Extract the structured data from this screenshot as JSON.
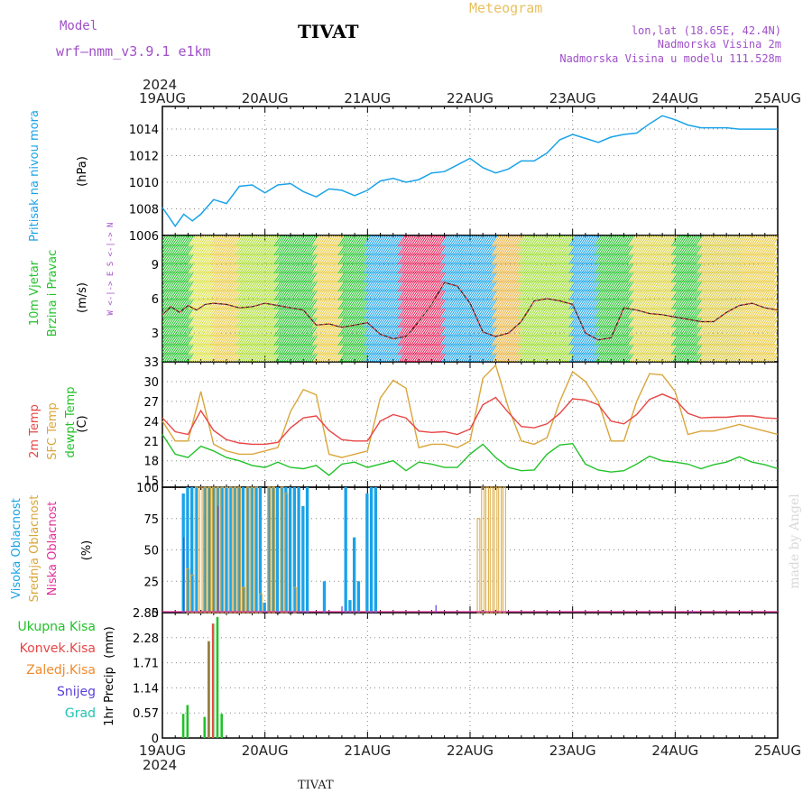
{
  "header": {
    "model_label": "Model",
    "model_name": "wrf—nmm_v3.9.1  e1km",
    "station": "TIVAT",
    "meteogram": "Meteogram",
    "lonlat": "lon,lat (18.65E, 42.4N)",
    "height": "Nadmorska Visina 2m",
    "model_height": "Nadmorska Visina u modelu 111.528m",
    "footer_station": "TIVAT",
    "watermark": "made by Angel",
    "year_top": "2024",
    "year_bottom": "2024",
    "wind_compass": "W <-|-> E   S <-|-> N"
  },
  "colors": {
    "pressure": "#1aa3e8",
    "temp2m": "#e84545",
    "sfctemp": "#d9a63a",
    "dewpoint": "#22c22a",
    "cloud_high": "#1aa3e8",
    "cloud_mid": "#d9a63a",
    "cloud_low": "#e0309a",
    "rain_total": "#22c22a",
    "rain_conv": "#e84545",
    "snow": "#5a3fd8",
    "hail": "#22c2b0",
    "freezing": "#f08a2a",
    "model_text": "#a050c8"
  },
  "x_axis": {
    "labels": [
      "19AUG",
      "20AUG",
      "21AUG",
      "22AUG",
      "23AUG",
      "24AUG",
      "25AUG"
    ],
    "range_hours": [
      0,
      144
    ]
  },
  "chart_data": [
    {
      "type": "line",
      "panel": "pressure",
      "ylabel_title": "Pritisak na nivou mora",
      "ylabel_unit": "(hPa)",
      "ylim": [
        1006,
        1015.7
      ],
      "yticks": [
        1006,
        1008,
        1010,
        1012,
        1014
      ],
      "series": [
        {
          "name": "Pritisak na nivou mora",
          "x": [
            0,
            3,
            5,
            7,
            9,
            12,
            15,
            18,
            21,
            24,
            27,
            30,
            33,
            36,
            39,
            42,
            45,
            48,
            51,
            54,
            57,
            60,
            63,
            66,
            69,
            72,
            75,
            78,
            81,
            84,
            87,
            90,
            93,
            96,
            99,
            102,
            105,
            108,
            111,
            114,
            117,
            120,
            123,
            126,
            129,
            132,
            135,
            138,
            141,
            144
          ],
          "y": [
            1008.1,
            1006.7,
            1007.6,
            1007.1,
            1007.6,
            1008.7,
            1008.4,
            1009.7,
            1009.8,
            1009.2,
            1009.8,
            1009.9,
            1009.3,
            1008.9,
            1009.5,
            1009.4,
            1009.0,
            1009.4,
            1010.1,
            1010.3,
            1010.0,
            1010.2,
            1010.7,
            1010.8,
            1011.3,
            1011.8,
            1011.1,
            1010.7,
            1011.0,
            1011.6,
            1011.6,
            1012.2,
            1013.2,
            1013.6,
            1013.3,
            1013.0,
            1013.4,
            1013.6,
            1013.7,
            1014.4,
            1015.0,
            1014.7,
            1014.3,
            1014.1,
            1014.1,
            1014.1,
            1014.0,
            1014.0,
            1014.0,
            1014.0
          ]
        }
      ]
    },
    {
      "type": "line",
      "panel": "wind",
      "ylabel_title": "10m Vjetar Brzina i Pravac",
      "ylabel_unit": "(m/s)",
      "ylim": [
        0.5,
        11.5
      ],
      "yticks": [
        3,
        6,
        9
      ],
      "series": [
        {
          "name": "10m Vjetar Brzina i Pravac",
          "x": [
            0,
            2,
            4,
            6,
            8,
            10,
            12,
            15,
            18,
            21,
            24,
            27,
            30,
            33,
            36,
            39,
            42,
            45,
            48,
            51,
            54,
            57,
            60,
            63,
            66,
            69,
            72,
            75,
            78,
            81,
            84,
            87,
            90,
            93,
            96,
            99,
            102,
            105,
            108,
            111,
            114,
            117,
            120,
            123,
            126,
            129,
            132,
            135,
            138,
            141,
            144
          ],
          "y": [
            4.6,
            5.3,
            4.8,
            5.4,
            5.0,
            5.5,
            5.6,
            5.5,
            5.2,
            5.3,
            5.6,
            5.4,
            5.2,
            5.0,
            3.7,
            3.8,
            3.5,
            3.7,
            3.9,
            2.9,
            2.5,
            2.7,
            4.0,
            5.5,
            7.4,
            7.1,
            5.6,
            3.1,
            2.7,
            3.0,
            4.0,
            5.8,
            6.0,
            5.8,
            5.5,
            3.0,
            2.4,
            2.6,
            5.2,
            5.0,
            4.7,
            4.6,
            4.4,
            4.2,
            4.0,
            4.0,
            4.8,
            5.4,
            5.6,
            5.2,
            5.0
          ]
        }
      ]
    },
    {
      "type": "line",
      "panel": "temperature",
      "ylabel_title": "2m Temp  SFC Temp  dewpt Temp",
      "ylabel_unit": "(C)",
      "ylim": [
        14,
        33
      ],
      "yticks": [
        15,
        18,
        21,
        24,
        27,
        30,
        33
      ],
      "series": [
        {
          "name": "2m Temp",
          "x": [
            0,
            3,
            6,
            9,
            12,
            15,
            18,
            21,
            24,
            27,
            30,
            33,
            36,
            39,
            42,
            45,
            48,
            51,
            54,
            57,
            60,
            63,
            66,
            69,
            72,
            75,
            78,
            81,
            84,
            87,
            90,
            93,
            96,
            99,
            102,
            105,
            108,
            111,
            114,
            117,
            120,
            123,
            126,
            129,
            132,
            135,
            138,
            141,
            144
          ],
          "y": [
            24.5,
            22.4,
            22.0,
            25.6,
            22.6,
            21.2,
            20.7,
            20.5,
            20.5,
            20.8,
            23.0,
            24.5,
            24.8,
            22.6,
            21.2,
            21.0,
            21.0,
            24.0,
            25.0,
            24.5,
            22.5,
            22.3,
            22.4,
            22.0,
            22.8,
            26.5,
            27.6,
            25.3,
            23.2,
            23.0,
            23.6,
            25.2,
            27.4,
            27.2,
            26.5,
            24.0,
            23.6,
            25.0,
            27.3,
            28.1,
            27.3,
            25.2,
            24.5,
            24.6,
            24.6,
            24.8,
            24.8,
            24.5,
            24.4
          ]
        },
        {
          "name": "SFC Temp",
          "x": [
            0,
            3,
            6,
            9,
            12,
            15,
            18,
            21,
            24,
            27,
            30,
            33,
            36,
            39,
            42,
            45,
            48,
            51,
            54,
            57,
            60,
            63,
            66,
            69,
            72,
            75,
            78,
            81,
            84,
            87,
            90,
            93,
            96,
            99,
            102,
            105,
            108,
            111,
            114,
            117,
            120,
            123,
            126,
            129,
            132,
            135,
            138,
            141,
            144
          ],
          "y": [
            24.0,
            21.0,
            21.0,
            28.5,
            20.5,
            19.5,
            19.0,
            19.0,
            19.5,
            20.0,
            25.5,
            28.8,
            28.0,
            19.0,
            18.5,
            19.0,
            19.5,
            27.5,
            30.2,
            29.0,
            20.0,
            20.5,
            20.5,
            20.0,
            21.0,
            30.5,
            32.5,
            26.0,
            21.0,
            20.5,
            21.5,
            27.0,
            31.5,
            30.0,
            27.0,
            21.0,
            21.0,
            27.0,
            31.2,
            31.0,
            28.5,
            22.0,
            22.5,
            22.5,
            23.0,
            23.5,
            23.0,
            22.5,
            22.0
          ]
        },
        {
          "name": "dewpt Temp",
          "x": [
            0,
            3,
            6,
            9,
            12,
            15,
            18,
            21,
            24,
            27,
            30,
            33,
            36,
            39,
            42,
            45,
            48,
            51,
            54,
            57,
            60,
            63,
            66,
            69,
            72,
            75,
            78,
            81,
            84,
            87,
            90,
            93,
            96,
            99,
            102,
            105,
            108,
            111,
            114,
            117,
            120,
            123,
            126,
            129,
            132,
            135,
            138,
            141,
            144
          ],
          "y": [
            22.0,
            19.0,
            18.5,
            20.2,
            19.5,
            18.5,
            18.0,
            17.3,
            17.0,
            17.8,
            17.0,
            16.8,
            17.3,
            15.8,
            17.5,
            17.8,
            17.0,
            17.5,
            18.0,
            16.5,
            17.8,
            17.5,
            17.0,
            17.0,
            19.0,
            20.5,
            18.5,
            17.0,
            16.5,
            16.6,
            19.0,
            20.4,
            20.6,
            17.5,
            16.6,
            16.3,
            16.5,
            17.5,
            18.7,
            18.0,
            17.8,
            17.5,
            16.8,
            17.4,
            17.8,
            18.6,
            17.8,
            17.4,
            16.8
          ]
        }
      ]
    },
    {
      "type": "bar",
      "panel": "cloud",
      "ylabel_titles": [
        "Visoka Oblacnost",
        "Srednja Oblacnost",
        "Niska Oblacnost"
      ],
      "ylabel_unit": "(%)",
      "ylim": [
        0,
        100
      ],
      "yticks": [
        0,
        25,
        50,
        75,
        100
      ],
      "series": [
        {
          "name": "Visoka Oblacnost",
          "x": [
            5,
            6,
            7,
            8,
            10,
            11,
            12,
            13,
            14,
            15,
            16,
            17,
            18,
            19,
            20,
            21,
            22,
            23,
            24,
            25,
            26,
            27,
            28,
            29,
            30,
            31,
            32,
            33,
            34,
            38,
            43,
            44,
            45,
            46,
            48,
            49,
            50
          ],
          "y": [
            95,
            100,
            100,
            100,
            100,
            100,
            100,
            100,
            100,
            100,
            100,
            100,
            100,
            100,
            100,
            100,
            100,
            100,
            8,
            100,
            100,
            100,
            100,
            100,
            100,
            100,
            100,
            85,
            100,
            25,
            100,
            10,
            60,
            25,
            95,
            100,
            100
          ]
        },
        {
          "name": "Srednja Oblacnost",
          "x": [
            6,
            7,
            8,
            9,
            10,
            11,
            12,
            13,
            14,
            15,
            16,
            17,
            18,
            19,
            20,
            21,
            22,
            23,
            25,
            26,
            28,
            29,
            31,
            74,
            75,
            76,
            77,
            78,
            79,
            80
          ],
          "y": [
            35,
            30,
            100,
            100,
            100,
            100,
            100,
            100,
            100,
            100,
            100,
            100,
            100,
            20,
            100,
            100,
            100,
            15,
            100,
            100,
            100,
            95,
            20,
            75,
            100,
            100,
            100,
            100,
            100,
            100
          ]
        },
        {
          "name": "Niska Oblacnost",
          "x": [
            5,
            13,
            42,
            64,
            124
          ],
          "y": [
            60,
            85,
            5,
            6,
            2
          ]
        }
      ]
    },
    {
      "type": "bar",
      "panel": "precip",
      "ylabel_title": "1hr Precip",
      "ylabel_unit": "(mm)",
      "legend": [
        "Ukupna Kisa",
        "Konvek.Kisa",
        "Zaledj.Kisa",
        "Snijeg",
        "Grad"
      ],
      "ylim": [
        0,
        2.85
      ],
      "yticks": [
        0,
        0.57,
        1.14,
        1.71,
        2.28,
        2.85
      ],
      "series": [
        {
          "name": "Ukupna Kisa",
          "x": [
            5,
            6,
            10,
            11,
            12,
            13,
            14
          ],
          "y": [
            0.55,
            0.75,
            0.48,
            2.2,
            2.6,
            2.75,
            0.55
          ]
        },
        {
          "name": "Konvek.Kisa",
          "x": [
            11,
            12
          ],
          "y": [
            2.2,
            2.6
          ]
        }
      ]
    }
  ]
}
